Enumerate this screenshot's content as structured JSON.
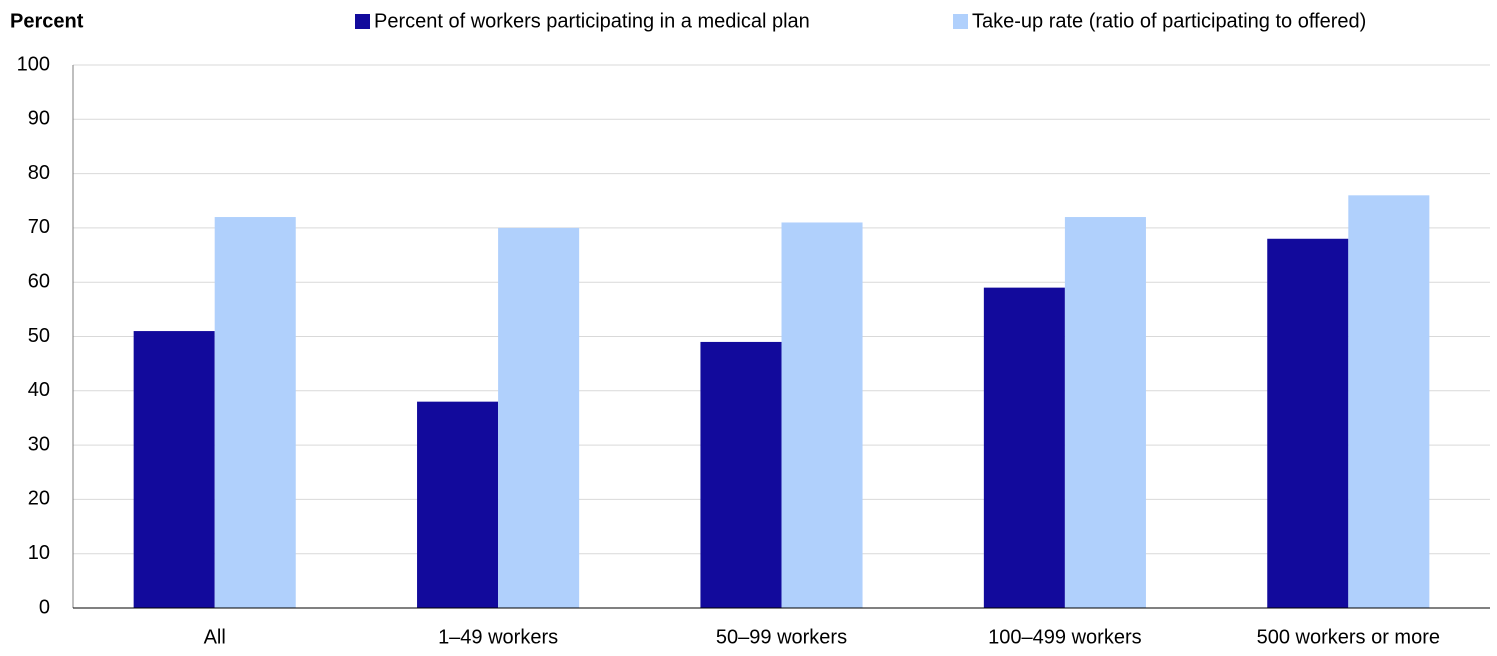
{
  "chart_data": {
    "type": "bar",
    "y_label": "Percent",
    "categories": [
      "All",
      "1–49 workers",
      "50–99 workers",
      "100–499 workers",
      "500 workers or more"
    ],
    "series": [
      {
        "name": "Percent of workers participating in a medical plan",
        "color": "#120a9c",
        "values": [
          51,
          38,
          49,
          59,
          68
        ]
      },
      {
        "name": "Take-up rate (ratio of participating to offered)",
        "color": "#b0d0fc",
        "values": [
          72,
          70,
          71,
          72,
          76
        ]
      }
    ],
    "ylim": [
      0,
      100
    ],
    "yticks": [
      0,
      10,
      20,
      30,
      40,
      50,
      60,
      70,
      80,
      90,
      100
    ],
    "grid": true,
    "legend": "top"
  }
}
